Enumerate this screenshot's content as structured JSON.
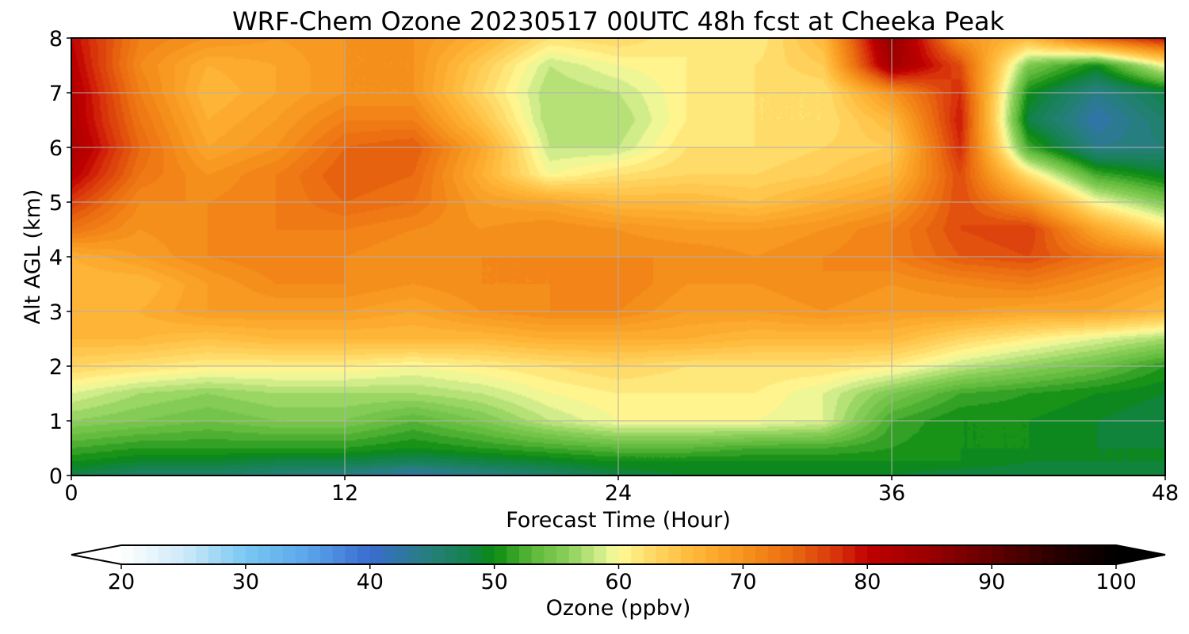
{
  "chart_data": {
    "type": "heatmap",
    "title": "WRF-Chem Ozone  20230517 00UTC 48h fcst at Cheeka Peak",
    "xlabel": "Forecast Time (Hour)",
    "ylabel": "Alt AGL (km)",
    "xlim": [
      0,
      48
    ],
    "ylim": [
      0,
      8
    ],
    "x_ticks": [
      "0",
      "12",
      "24",
      "36",
      "48"
    ],
    "y_ticks": [
      "0",
      "1",
      "2",
      "3",
      "4",
      "5",
      "6",
      "7",
      "8"
    ],
    "grid": true,
    "x_hours": [
      0,
      3,
      6,
      9,
      12,
      15,
      18,
      21,
      24,
      27,
      30,
      33,
      36,
      39,
      42,
      45,
      48
    ],
    "y_km": [
      0,
      0.25,
      0.5,
      1,
      1.5,
      2,
      2.5,
      3,
      3.5,
      4,
      4.5,
      5,
      5.5,
      6,
      6.5,
      7,
      7.5,
      8
    ],
    "z_ozone_ppbv": [
      [
        48,
        46,
        46,
        45,
        44,
        42,
        44,
        46,
        48,
        49,
        49,
        49,
        49,
        48,
        48,
        48,
        49
      ],
      [
        50,
        49,
        49,
        48,
        48,
        47,
        48,
        49,
        50,
        50,
        50,
        50,
        50,
        50,
        49,
        49,
        49
      ],
      [
        52,
        51,
        51,
        51,
        51,
        50,
        51,
        52,
        53,
        53,
        52,
        52,
        51,
        50,
        50,
        49,
        49
      ],
      [
        56,
        55,
        54,
        55,
        55,
        53,
        55,
        58,
        60,
        60,
        60,
        59,
        52,
        50,
        50,
        49,
        48
      ],
      [
        59,
        57,
        56,
        57,
        57,
        57,
        58,
        60,
        61,
        61,
        61,
        59,
        55,
        52,
        51,
        50,
        49
      ],
      [
        63,
        62,
        61,
        61,
        61,
        60,
        61,
        62,
        63,
        62,
        62,
        62,
        61,
        58,
        56,
        54,
        51
      ],
      [
        66,
        66,
        65,
        66,
        66,
        66,
        66,
        67,
        67,
        67,
        66,
        66,
        66,
        63,
        61,
        59,
        57
      ],
      [
        66,
        67,
        69,
        69,
        69,
        68,
        70,
        71,
        71,
        69,
        69,
        70,
        69,
        69,
        68,
        68,
        66
      ],
      [
        66,
        66,
        69,
        71,
        71,
        70,
        71,
        71,
        72,
        70,
        70,
        71,
        70,
        71,
        72,
        70,
        68
      ],
      [
        67,
        69,
        71,
        72,
        71,
        70,
        71,
        71,
        71,
        71,
        70,
        71,
        72,
        75,
        76,
        73,
        71
      ],
      [
        73,
        70,
        71,
        72,
        72,
        71,
        70,
        71,
        70,
        69,
        69,
        70,
        72,
        76,
        77,
        68,
        62
      ],
      [
        77,
        71,
        71,
        72,
        74,
        73,
        69,
        68,
        66,
        66,
        65,
        67,
        69,
        76,
        70,
        60,
        55
      ],
      [
        81,
        73,
        70,
        72,
        75,
        74,
        67,
        60,
        62,
        63,
        63,
        64,
        66,
        76,
        62,
        52,
        49
      ],
      [
        83,
        74,
        68,
        70,
        74,
        75,
        68,
        58,
        58,
        62,
        62,
        63,
        64,
        78,
        52,
        44,
        45
      ],
      [
        82,
        73,
        67,
        69,
        72,
        72,
        65,
        57,
        57,
        61,
        62,
        62,
        66,
        79,
        48,
        42,
        46
      ],
      [
        82,
        72,
        66,
        68,
        70,
        70,
        63,
        57,
        58,
        61,
        62,
        62,
        70,
        78,
        50,
        44,
        48
      ],
      [
        81,
        71,
        67,
        68,
        70,
        70,
        64,
        58,
        60,
        61,
        62,
        64,
        84,
        76,
        55,
        50,
        60
      ],
      [
        80,
        72,
        70,
        69,
        70,
        70,
        67,
        62,
        63,
        61,
        61,
        66,
        86,
        70,
        66,
        75,
        80
      ]
    ]
  },
  "colorbar": {
    "label": "Ozone  (ppbv)",
    "min": 20,
    "max": 100,
    "ticks": [
      "20",
      "30",
      "40",
      "50",
      "60",
      "70",
      "80",
      "90",
      "100"
    ],
    "extend": "both",
    "color_stops": [
      [
        20,
        "#ffffff"
      ],
      [
        25,
        "#cfeaf8"
      ],
      [
        30,
        "#79c7f2"
      ],
      [
        35,
        "#5aa6ea"
      ],
      [
        40,
        "#3a6cd0"
      ],
      [
        45,
        "#258078"
      ],
      [
        48,
        "#13824a"
      ],
      [
        50,
        "#0a8a10"
      ],
      [
        53,
        "#5cb83a"
      ],
      [
        56,
        "#8cd05a"
      ],
      [
        59,
        "#dff293"
      ],
      [
        60,
        "#fffa96"
      ],
      [
        63,
        "#ffd560"
      ],
      [
        66,
        "#ffb83a"
      ],
      [
        70,
        "#f7941d"
      ],
      [
        74,
        "#ea6a10"
      ],
      [
        78,
        "#d52b0a"
      ],
      [
        80,
        "#c00000"
      ],
      [
        85,
        "#9a0000"
      ],
      [
        90,
        "#620000"
      ],
      [
        95,
        "#2a0000"
      ],
      [
        100,
        "#000000"
      ]
    ]
  }
}
